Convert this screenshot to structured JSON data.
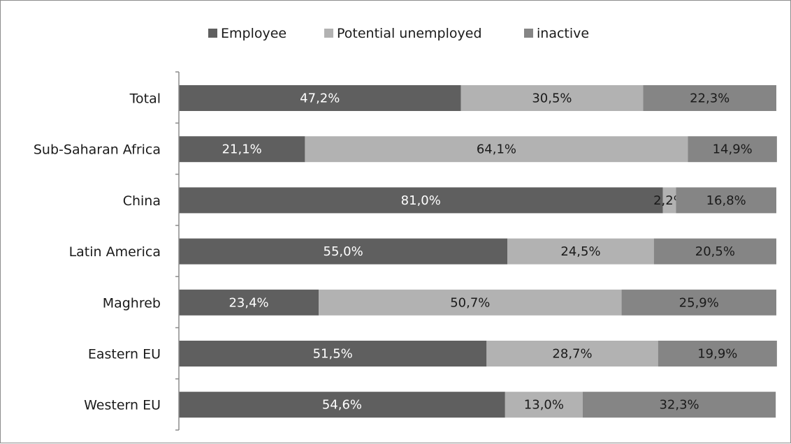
{
  "chart_data": {
    "type": "bar",
    "orientation": "horizontal",
    "stacked": true,
    "normalized": true,
    "categories": [
      "Total",
      "Sub-Saharan Africa",
      "China",
      "Latin America",
      "Maghreb",
      "Eastern EU",
      "Western EU"
    ],
    "series": [
      {
        "name": "Employee",
        "color": "#5f5f5f",
        "label_color": "#ffffff",
        "values": [
          47.2,
          21.1,
          81.0,
          55.0,
          23.4,
          51.5,
          54.6
        ],
        "labels": [
          "47,2%",
          "21,1%",
          "81,0%",
          "55,0%",
          "23,4%",
          "51,5%",
          "54,6%"
        ]
      },
      {
        "name": "Potential unemployed",
        "color": "#b2b2b2",
        "label_color": "#1a1a1a",
        "values": [
          30.5,
          64.1,
          2.2,
          24.5,
          50.7,
          28.7,
          13.0
        ],
        "labels": [
          "30,5%",
          "64,1%",
          "2,2%",
          "24,5%",
          "50,7%",
          "28,7%",
          "13,0%"
        ]
      },
      {
        "name": "inactive",
        "color": "#858585",
        "label_color": "#1a1a1a",
        "values": [
          22.3,
          14.9,
          16.8,
          20.5,
          25.9,
          19.9,
          32.3
        ],
        "labels": [
          "22,3%",
          "14,9%",
          "16,8%",
          "20,5%",
          "25,9%",
          "19,9%",
          "32,3%"
        ]
      }
    ],
    "legend_position": "top",
    "xlim": [
      0,
      100
    ],
    "grid": false
  }
}
